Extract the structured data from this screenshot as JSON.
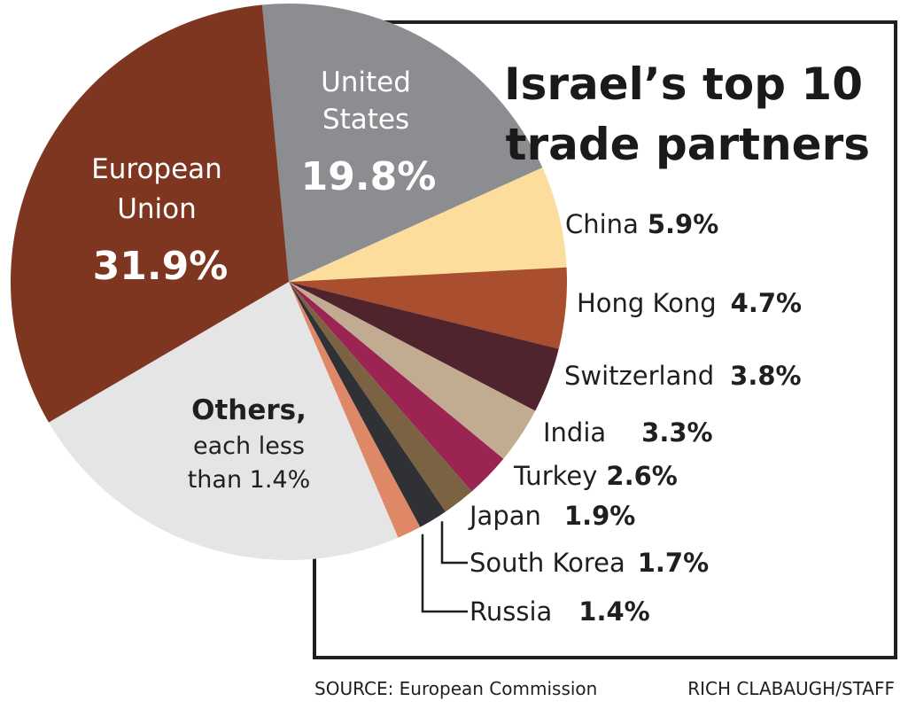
{
  "chart_data": {
    "type": "pie",
    "title_lines": [
      "Israel’s top 10",
      "trade partners"
    ],
    "unit": "%",
    "slices": [
      {
        "name": "European Union",
        "name_lines": [
          "European",
          "Union"
        ],
        "value": 31.9,
        "display": "31.9%",
        "color": "#7e3620"
      },
      {
        "name": "United States",
        "name_lines": [
          "United",
          "States"
        ],
        "value": 19.8,
        "display": "19.8%",
        "color": "#8c8d90"
      },
      {
        "name": "China",
        "value": 5.9,
        "display": "5.9%",
        "color": "#fcdd9b"
      },
      {
        "name": "Hong Kong",
        "value": 4.7,
        "display": "4.7%",
        "color": "#a94e2f"
      },
      {
        "name": "Switzerland",
        "value": 3.8,
        "display": "3.8%",
        "color": "#4f242c"
      },
      {
        "name": "India",
        "value": 3.3,
        "display": "3.3%",
        "color": "#c1ab91"
      },
      {
        "name": "Turkey",
        "value": 2.6,
        "display": "2.6%",
        "color": "#9c2453"
      },
      {
        "name": "Japan",
        "value": 1.9,
        "display": "1.9%",
        "color": "#7b6243"
      },
      {
        "name": "South Korea",
        "value": 1.7,
        "display": "1.7%",
        "color": "#2f3135"
      },
      {
        "name": "Russia",
        "value": 1.4,
        "display": "1.4%",
        "color": "#df8868"
      }
    ],
    "others": {
      "name": "Others,",
      "note_lines": [
        "each less",
        "than 1.4%"
      ],
      "value": 23.0,
      "color": "#e5e5e5"
    }
  },
  "footer": {
    "source": "SOURCE: European Commission",
    "credit": "RICH CLABAUGH/STAFF"
  }
}
